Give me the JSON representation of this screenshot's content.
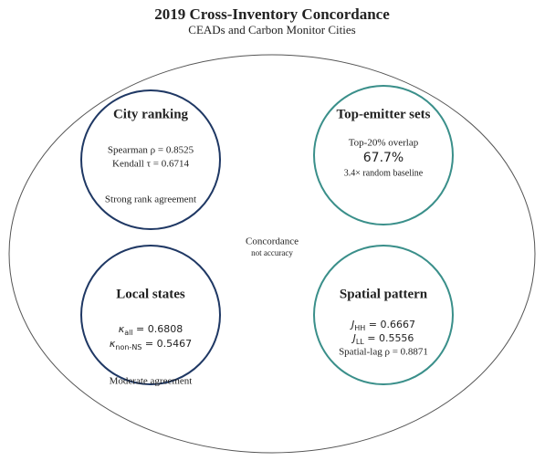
{
  "header": {
    "title": "2019 Cross-Inventory Concordance",
    "subtitle": "CEADs and Carbon Monitor Cities"
  },
  "center": {
    "label": "Concordance",
    "sublabel": "not accuracy"
  },
  "nodes": [
    {
      "title": "City ranking",
      "lines": [
        {
          "text": "Spearman ρ = 0.8525"
        },
        {
          "text": "Kendall τ = 0.6714"
        }
      ],
      "note": "Strong rank agreement"
    },
    {
      "title": "Top-emitter sets",
      "lines": [
        {
          "text": "Top-20% overlap"
        },
        {
          "text": "67.7%"
        },
        {
          "text": "3.4× random baseline"
        }
      ]
    },
    {
      "title": "Local states",
      "lines": [
        {
          "sym": "κ",
          "sub": "all",
          "rest": " = 0.6808"
        },
        {
          "sym": "κ",
          "sub": "non-NS",
          "rest": " = 0.5467"
        }
      ],
      "note": "Moderate agreement"
    },
    {
      "title": "Spatial pattern",
      "lines": [
        {
          "sym": "J",
          "sub": "HH",
          "rest": " = 0.6667"
        },
        {
          "sym": "J",
          "sub": "LL",
          "rest": " = 0.5556"
        },
        {
          "text": "Spatial-lag ρ = 0.8871"
        }
      ]
    }
  ]
}
